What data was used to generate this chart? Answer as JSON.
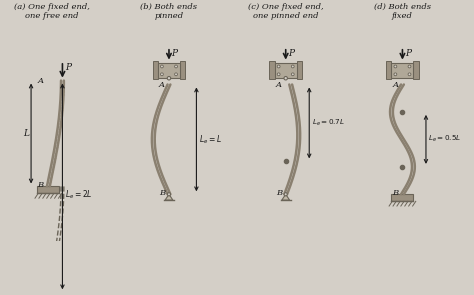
{
  "bg_color": "#d4cfc7",
  "strut_color": "#8a8070",
  "strut_fill": "#b0a898",
  "gray_dark": "#6a6458",
  "gray_mid": "#9a9080",
  "gray_light": "#c0b8a8",
  "block_color": "#b0a898",
  "block_edge": "#6a6458",
  "text_color": "#1a1a1a",
  "titles": [
    "(a) One fixed end,\none free end",
    "(b) Both ends\npinned",
    "(c) One fixed end,\none pinned end",
    "(d) Both ends\nfixed"
  ]
}
